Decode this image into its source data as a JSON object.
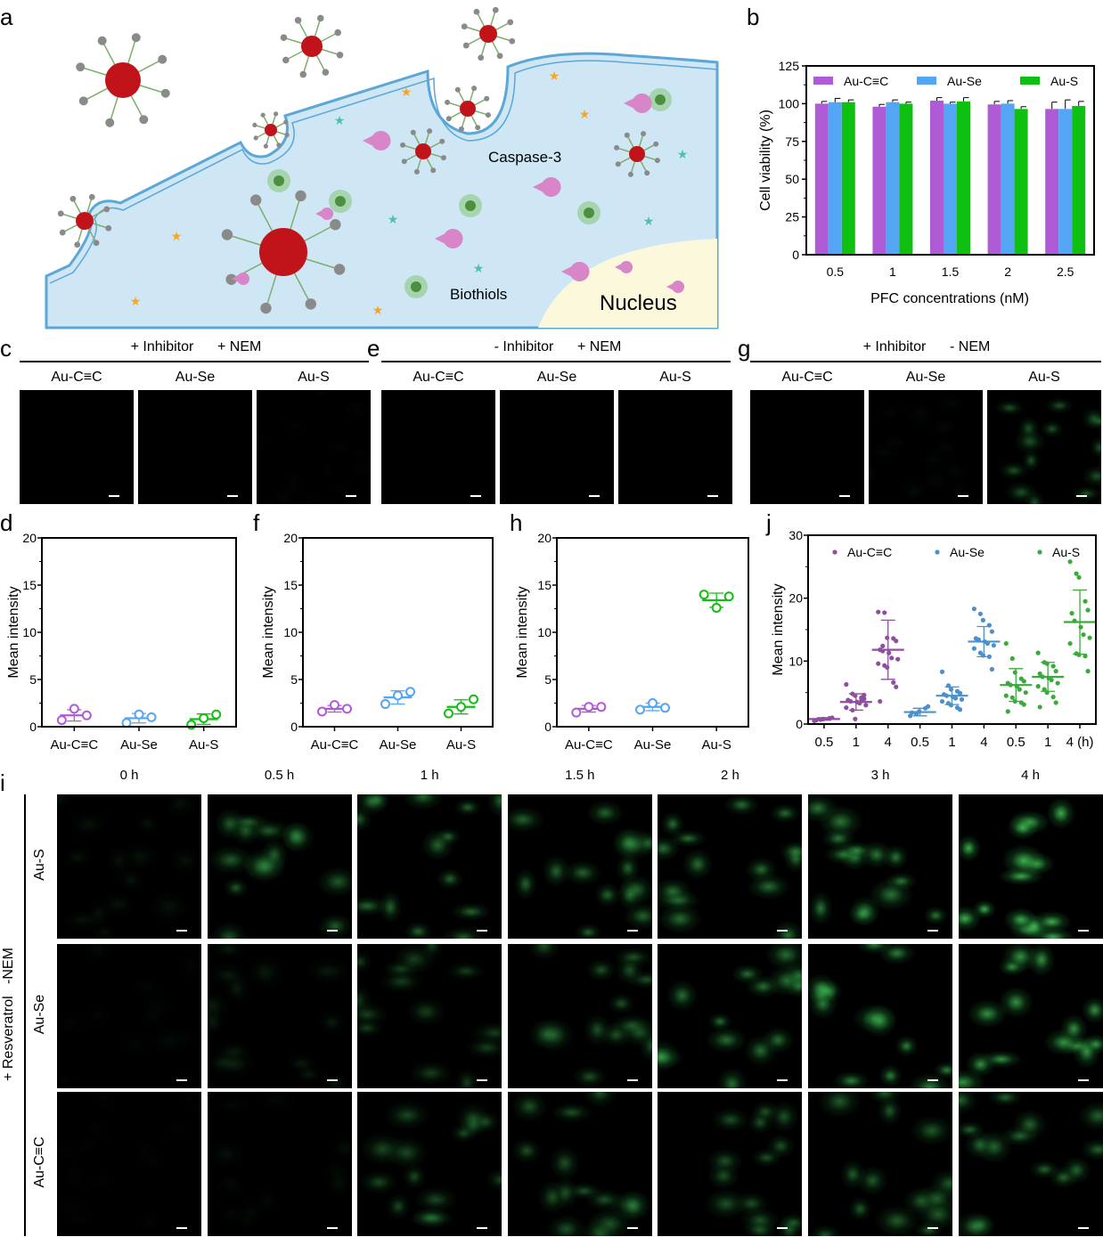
{
  "panel_letters": {
    "a": "a",
    "b": "b",
    "c": "c",
    "d": "d",
    "e": "e",
    "f": "f",
    "g": "g",
    "h": "h",
    "i": "i",
    "j": "j"
  },
  "schematic": {
    "labels": {
      "caspase": "Caspase-3",
      "biothiols": "Biothiols",
      "nucleus": "Nucleus"
    },
    "colors": {
      "cytoplasm": "#cfe6f5",
      "membrane": "#5aa7d8",
      "nucleus": "#fbf8dc",
      "nanoparticle": "#c0141a",
      "shell": "#8a8a8a",
      "caspase": "#d986c8",
      "fluorescence": "#7cc46a",
      "star_orange": "#f5a623",
      "star_teal": "#4fbfb0"
    }
  },
  "imaging_groups": [
    {
      "header": "+ Inhibitor      + NEM",
      "columns": [
        "Au-C≡C",
        "Au-Se",
        "Au-S"
      ],
      "brightness": [
        0,
        0,
        0.02
      ]
    },
    {
      "header": "- Inhibitor      + NEM",
      "columns": [
        "Au-C≡C",
        "Au-Se",
        "Au-S"
      ],
      "brightness": [
        0,
        0,
        0
      ]
    },
    {
      "header": "+ Inhibitor      - NEM",
      "columns": [
        "Au-C≡C",
        "Au-Se",
        "Au-S"
      ],
      "brightness": [
        0,
        0.05,
        0.45
      ]
    }
  ],
  "timecourse": {
    "condition_label": "+ Resveratrol   -NEM",
    "times": [
      "0 h",
      "0.5 h",
      "1 h",
      "1.5 h",
      "2 h",
      "3 h",
      "4 h"
    ],
    "rows": [
      {
        "label": "Au-S",
        "brightness": [
          0.1,
          0.5,
          0.55,
          0.55,
          0.6,
          0.65,
          0.95
        ]
      },
      {
        "label": "Au-Se",
        "brightness": [
          0.03,
          0.15,
          0.35,
          0.45,
          0.6,
          0.7,
          0.8
        ]
      },
      {
        "label": "Au-C≡C",
        "brightness": [
          0.02,
          0.05,
          0.4,
          0.45,
          0.45,
          0.5,
          0.55
        ]
      }
    ]
  },
  "chart_data": [
    {
      "id": "b",
      "type": "bar",
      "xlabel": "PFC concentrations (nM)",
      "ylabel": "Cell viability (%)",
      "categories": [
        "0.5",
        "1",
        "1.5",
        "2",
        "2.5"
      ],
      "ylim": [
        0,
        125
      ],
      "yticks": [
        "0",
        "25",
        "50",
        "75",
        "100",
        "125"
      ],
      "legend_position": "top",
      "series": [
        {
          "name": "Au-C≡C",
          "color": "#b05bd6",
          "values": [
            100,
            98,
            102,
            99.5,
            96.5
          ],
          "errors": [
            1.5,
            1.5,
            2,
            2,
            4.5
          ]
        },
        {
          "name": "Au-Se",
          "color": "#55a5f5",
          "values": [
            101,
            101,
            100,
            100,
            96.5
          ],
          "errors": [
            2.5,
            1.5,
            1,
            2,
            6
          ]
        },
        {
          "name": "Au-S",
          "color": "#10c010",
          "values": [
            101,
            100,
            101.5,
            96.5,
            98.5
          ],
          "errors": [
            1.5,
            1,
            2.5,
            1.5,
            3
          ]
        }
      ]
    },
    {
      "id": "d",
      "type": "scatter",
      "ylabel": "Mean intensity",
      "ylim": [
        0,
        20
      ],
      "yticks": [
        "0",
        "5",
        "10",
        "15",
        "20"
      ],
      "categories": [
        "Au-C≡C",
        "Au-Se",
        "Au-S"
      ],
      "groups": [
        {
          "color": "#b05bd6",
          "points": [
            0.7,
            1.9,
            1.2
          ],
          "mean": 1.2,
          "sd": 0.6
        },
        {
          "color": "#55a5f5",
          "points": [
            0.4,
            1.3,
            1.0
          ],
          "mean": 0.9,
          "sd": 0.5
        },
        {
          "color": "#10c010",
          "points": [
            0.2,
            0.9,
            1.3
          ],
          "mean": 0.8,
          "sd": 0.55
        }
      ]
    },
    {
      "id": "f",
      "type": "scatter",
      "ylabel": "Mean intensity",
      "ylim": [
        0,
        20
      ],
      "yticks": [
        "0",
        "5",
        "10",
        "15",
        "20"
      ],
      "categories": [
        "Au-C≡C",
        "Au-Se",
        "Au-S"
      ],
      "groups": [
        {
          "color": "#b05bd6",
          "points": [
            1.6,
            2.3,
            1.9
          ],
          "mean": 1.9,
          "sd": 0.35
        },
        {
          "color": "#55a5f5",
          "points": [
            2.4,
            3.3,
            3.7
          ],
          "mean": 3.1,
          "sd": 0.7
        },
        {
          "color": "#10c010",
          "points": [
            1.4,
            2.1,
            2.9
          ],
          "mean": 2.1,
          "sd": 0.75
        }
      ]
    },
    {
      "id": "h",
      "type": "scatter",
      "ylabel": "Mean intensity",
      "ylim": [
        0,
        20
      ],
      "yticks": [
        "0",
        "5",
        "10",
        "15",
        "20"
      ],
      "categories": [
        "Au-C≡C",
        "Au-Se",
        "Au-S"
      ],
      "groups": [
        {
          "color": "#b05bd6",
          "points": [
            1.5,
            2.1,
            2.1
          ],
          "mean": 1.9,
          "sd": 0.35
        },
        {
          "color": "#55a5f5",
          "points": [
            1.8,
            2.5,
            2.0
          ],
          "mean": 2.1,
          "sd": 0.4
        },
        {
          "color": "#10c010",
          "points": [
            14.0,
            12.6,
            13.8
          ],
          "mean": 13.4,
          "sd": 0.75
        }
      ]
    },
    {
      "id": "j",
      "type": "scatter",
      "ylabel": "Mean intensity",
      "ylim": [
        0,
        30
      ],
      "yticks": [
        "0",
        "10",
        "20",
        "30"
      ],
      "categories": [
        "0.5",
        "1",
        "4",
        "0.5",
        "1",
        "4",
        "0.5",
        "1",
        "4 (h)"
      ],
      "legend_position": "top",
      "legend": [
        {
          "name": "Au-C≡C",
          "color": "#8e4f9e"
        },
        {
          "name": "Au-Se",
          "color": "#4a90cc"
        },
        {
          "name": "Au-S",
          "color": "#3aaa3a"
        }
      ],
      "groups": [
        {
          "color": "#8e4f9e",
          "points": [
            0.5,
            0.7,
            0.8,
            0.9,
            1.0,
            0.6
          ],
          "mean": 0.8,
          "sd": 0.2
        },
        {
          "color": "#8e4f9e",
          "points": [
            6.3,
            4.8,
            4.5,
            4.2,
            4.0,
            3.8,
            3.6,
            3.5,
            3.3,
            3.0,
            2.6,
            2.2,
            0.8,
            3.9,
            4.6
          ],
          "mean": 3.5,
          "sd": 1.3
        },
        {
          "color": "#8e4f9e",
          "points": [
            17.8,
            17.7,
            13.7,
            13.6,
            13.2,
            11.8,
            11.6,
            11.3,
            10.5,
            10.3,
            9.6,
            9.3,
            9.0,
            6.6,
            5.9,
            3.6,
            12.4
          ],
          "mean": 11.8,
          "sd": 4.7
        },
        {
          "color": "#4a90cc",
          "points": [
            1.3,
            1.6,
            2.0,
            2.5,
            2.8,
            1.8
          ],
          "mean": 1.9,
          "sd": 0.6
        },
        {
          "color": "#4a90cc",
          "points": [
            8.3,
            6.1,
            5.5,
            5.2,
            4.9,
            4.7,
            4.5,
            4.3,
            4.1,
            3.9,
            3.6,
            3.3,
            3.0,
            2.6,
            2.3
          ],
          "mean": 4.5,
          "sd": 1.4
        },
        {
          "color": "#4a90cc",
          "points": [
            18.3,
            17.5,
            16.5,
            15.7,
            14.7,
            13.6,
            13.4,
            13.1,
            12.8,
            12.5,
            12.0,
            11.3,
            10.9,
            10.7,
            8.7
          ],
          "mean": 13.1,
          "sd": 2.4
        },
        {
          "color": "#3aaa3a",
          "points": [
            12.8,
            10.4,
            8.2,
            7.2,
            6.8,
            6.5,
            6.2,
            6.0,
            5.5,
            5.0,
            4.5,
            4.2,
            3.6,
            3.4,
            3.1,
            2.0
          ],
          "mean": 6.2,
          "sd": 2.6
        },
        {
          "color": "#3aaa3a",
          "points": [
            11.3,
            9.8,
            9.6,
            9.2,
            8.4,
            8.0,
            7.5,
            7.3,
            7.0,
            6.5,
            6.0,
            5.5,
            5.0,
            4.3,
            3.4,
            2.7
          ],
          "mean": 7.5,
          "sd": 2.3
        },
        {
          "color": "#3aaa3a",
          "points": [
            25.8,
            23.9,
            23.3,
            19.5,
            18.1,
            17.6,
            16.4,
            15.4,
            14.2,
            13.7,
            12.8,
            11.2,
            11.0,
            10.8,
            8.4
          ],
          "mean": 16.2,
          "sd": 5.1
        }
      ]
    }
  ]
}
